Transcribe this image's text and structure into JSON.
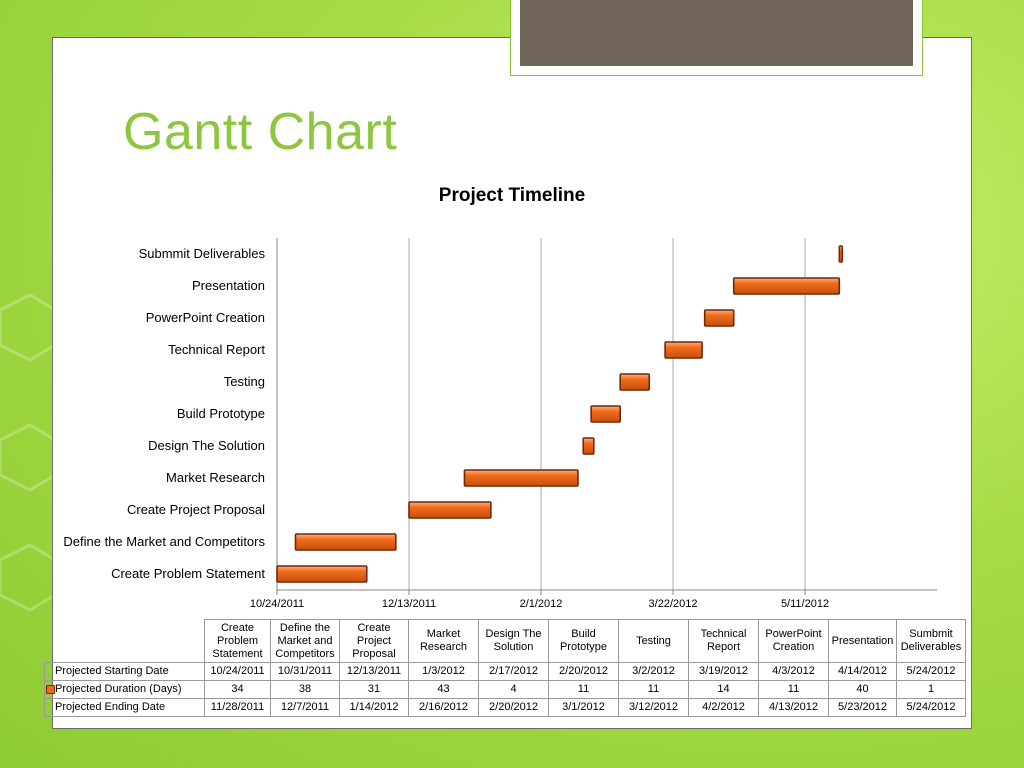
{
  "slide": {
    "title": "Gantt Chart"
  },
  "colors": {
    "bar_fill": "#f06a1c",
    "bar_border": "#6e2a08",
    "title": "#8dc63f",
    "background": "#a7dc45",
    "top_box": "#6f6659"
  },
  "chart_data": {
    "type": "bar",
    "orientation": "horizontal",
    "stacked": true,
    "title": "Project Timeline",
    "categories": [
      "Create Problem Statement",
      "Define the Market and Competitors",
      "Create Project Proposal",
      "Market Research",
      "Design The Solution",
      "Build Prototype",
      "Testing",
      "Technical Report",
      "PowerPoint Creation",
      "Presentation",
      "Sumbmit Deliverables"
    ],
    "category_labels": [
      "Create Problem Statement",
      "Define the Market and Competitors",
      "Create Project Proposal",
      "Market Research",
      "Design The Solution",
      "Build Prototype",
      "Testing",
      "Technical Report",
      "PowerPoint Creation",
      "Presentation",
      "Submmit Deliverables"
    ],
    "start_dates": [
      "2011-10-24",
      "2011-10-31",
      "2011-12-13",
      "2012-01-03",
      "2012-02-17",
      "2012-02-20",
      "2012-03-02",
      "2012-03-19",
      "2012-04-03",
      "2012-04-14",
      "2012-05-24"
    ],
    "series": [
      {
        "name": "Projected Duration (Days)",
        "values": [
          34,
          38,
          31,
          43,
          4,
          11,
          11,
          14,
          11,
          40,
          1
        ]
      }
    ],
    "xlim": [
      "2011-10-24",
      "2012-06-30"
    ],
    "x_ticks": [
      "2011-10-24",
      "2011-12-13",
      "2012-02-01",
      "2012-03-22",
      "2012-05-11"
    ],
    "x_tick_labels": [
      "10/24/2011",
      "12/13/2011",
      "2/1/2012",
      "3/22/2012",
      "5/11/2012"
    ],
    "grid": true
  },
  "table": {
    "headers": [
      [
        "Create",
        "Problem",
        "Statement"
      ],
      [
        "Define the",
        "Market and",
        "Competitors"
      ],
      [
        "Create",
        "Project",
        "Proposal"
      ],
      [
        "Market",
        "Research"
      ],
      [
        "Design The",
        "Solution"
      ],
      [
        "Build",
        "Prototype"
      ],
      [
        "Testing"
      ],
      [
        "Technical",
        "Report"
      ],
      [
        "PowerPoint",
        "Creation"
      ],
      [
        "Presentation"
      ],
      [
        "Sumbmit",
        "Deliverables"
      ]
    ],
    "rows": [
      {
        "label": "Projected Starting Date",
        "values": [
          "10/24/2011",
          "10/31/2011",
          "12/13/2011",
          "1/3/2012",
          "2/17/2012",
          "2/20/2012",
          "3/2/2012",
          "3/19/2012",
          "4/3/2012",
          "4/14/2012",
          "5/24/2012"
        ]
      },
      {
        "label": "Projected Duration (Days)",
        "values": [
          "34",
          "38",
          "31",
          "43",
          "4",
          "11",
          "11",
          "14",
          "11",
          "40",
          "1"
        ]
      },
      {
        "label": "Projected Ending Date",
        "values": [
          "11/28/2011",
          "12/7/2011",
          "1/14/2012",
          "2/16/2012",
          "2/20/2012",
          "3/1/2012",
          "3/12/2012",
          "4/2/2012",
          "4/13/2012",
          "5/23/2012",
          "5/24/2012"
        ]
      }
    ]
  }
}
